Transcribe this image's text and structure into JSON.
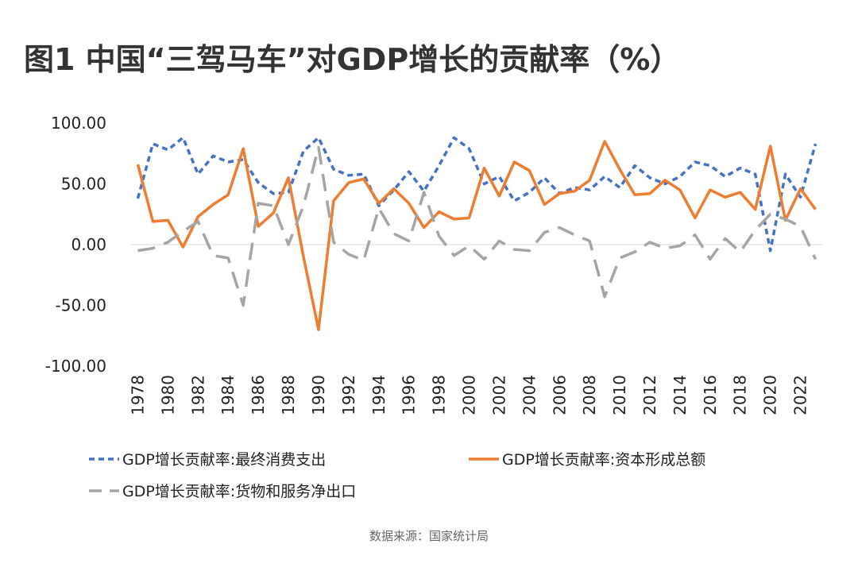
{
  "chart_data": {
    "type": "line",
    "title": "图1 中国“三驾马车”对GDP增长的贡献率（%）",
    "source": "数据来源：国家统计局",
    "categories": [
      "1978",
      null,
      "1980",
      null,
      "1982",
      null,
      "1984",
      null,
      "1986",
      null,
      "1988",
      null,
      "1990",
      null,
      "1992",
      null,
      "1994",
      null,
      "1996",
      null,
      "1998",
      null,
      "2000",
      null,
      "2002",
      null,
      "2004",
      null,
      "2006",
      null,
      "2008",
      null,
      "2010",
      null,
      "2012",
      null,
      "2014",
      null,
      "2016",
      null,
      "2018",
      null,
      "2020",
      null,
      "2022",
      null
    ],
    "series": [
      {
        "name": "GDP增长贡献率:最终消费支出",
        "color": "#4472c4",
        "style": "dashed",
        "values": [
          38,
          83,
          78,
          88,
          58,
          73,
          68,
          70,
          51,
          42,
          43,
          77,
          88,
          62,
          57,
          58,
          32,
          45,
          60,
          44,
          65,
          88,
          79,
          50,
          56,
          36,
          43,
          55,
          42,
          47,
          45,
          56,
          47,
          65,
          55,
          50,
          56,
          68,
          65,
          56,
          63,
          58,
          -5,
          58,
          39,
          83
        ]
      },
      {
        "name": "GDP增长贡献率:资本形成总额",
        "color": "#ed7d31",
        "style": "solid",
        "values": [
          66,
          19,
          20,
          -2,
          23,
          33,
          41,
          79,
          15,
          26,
          55,
          -10,
          -70,
          36,
          51,
          54,
          34,
          46,
          34,
          14,
          27,
          21,
          22,
          63,
          40,
          68,
          61,
          33,
          42,
          44,
          53,
          85,
          62,
          41,
          42,
          53,
          45,
          22,
          45,
          39,
          43,
          29,
          81,
          20,
          46,
          29
        ]
      },
      {
        "name": "GDP增长贡献率:货物和服务净出口",
        "color": "#a5a5a5",
        "style": "longdash",
        "values": [
          -5,
          -3,
          2,
          11,
          19,
          -9,
          -11,
          -50,
          34,
          32,
          0,
          32,
          80,
          2,
          -8,
          -13,
          30,
          9,
          3,
          43,
          7,
          -9,
          -1,
          -12,
          3,
          -4,
          -5,
          10,
          14,
          8,
          3,
          -43,
          -11,
          -6,
          2,
          -3,
          -1,
          8,
          -12,
          5,
          -6,
          12,
          25,
          21,
          15,
          -12
        ]
      }
    ],
    "ylim": [
      -100,
      100
    ],
    "yticks": [
      {
        "value": -100,
        "label": "-100.00"
      },
      {
        "value": -50,
        "label": "-50.00"
      },
      {
        "value": 0,
        "label": "0.00"
      },
      {
        "value": 50,
        "label": "50.00"
      },
      {
        "value": 100,
        "label": "100.00"
      }
    ]
  }
}
